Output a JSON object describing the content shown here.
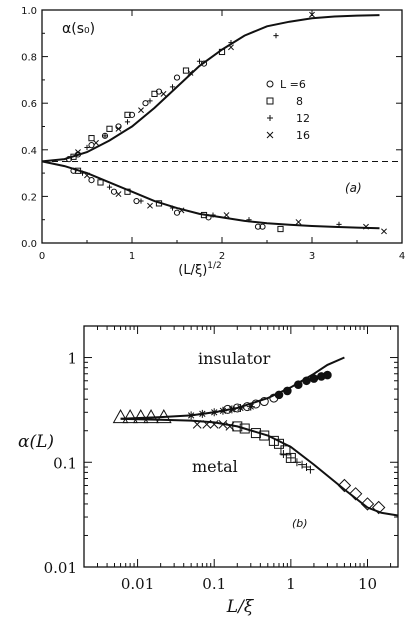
{
  "chart_data": [
    {
      "panel_label": "(a)",
      "type": "scatter",
      "ylabel": "α(s₀)",
      "xlabel": "(L/ξ)",
      "xlabel_exp": "1/2",
      "xlim": [
        0,
        4
      ],
      "ylim": [
        0,
        1
      ],
      "x_ticks": [
        "0",
        "1",
        "2",
        "3",
        "4"
      ],
      "y_ticks": [
        "0.0",
        "0.2",
        "0.4",
        "0.6",
        "0.8",
        "1.0"
      ],
      "legend_prefix": "L =",
      "legend": [
        {
          "label": "6",
          "marker": "circle"
        },
        {
          "label": "8",
          "marker": "square"
        },
        {
          "label": "12",
          "marker": "plus"
        },
        {
          "label": "16",
          "marker": "cross"
        }
      ],
      "dashed_level": 0.35,
      "curves": [
        {
          "x": [
            0,
            0.25,
            0.5,
            0.75,
            1.0,
            1.25,
            1.5,
            1.75,
            2.0,
            2.25,
            2.5,
            2.75,
            3.0,
            3.25,
            3.5,
            3.75
          ],
          "y": [
            0.35,
            0.36,
            0.39,
            0.44,
            0.5,
            0.58,
            0.67,
            0.76,
            0.83,
            0.89,
            0.93,
            0.95,
            0.965,
            0.972,
            0.976,
            0.978
          ]
        },
        {
          "x": [
            0,
            0.25,
            0.5,
            0.75,
            1.0,
            1.25,
            1.5,
            1.75,
            2.0,
            2.25,
            2.5,
            2.75,
            3.0,
            3.25,
            3.5,
            3.75
          ],
          "y": [
            0.35,
            0.33,
            0.3,
            0.26,
            0.22,
            0.18,
            0.15,
            0.125,
            0.11,
            0.095,
            0.085,
            0.078,
            0.073,
            0.069,
            0.066,
            0.063
          ]
        }
      ],
      "series": [
        {
          "name": "6",
          "marker": "circle",
          "x": [
            0.3,
            0.4,
            0.55,
            0.7,
            0.85,
            1.0,
            1.15,
            1.3,
            1.5,
            1.8,
            2.4,
            0.35,
            0.55,
            0.8,
            1.05,
            1.5,
            1.85,
            2.45
          ],
          "y": [
            0.36,
            0.38,
            0.42,
            0.46,
            0.5,
            0.55,
            0.6,
            0.65,
            0.71,
            0.77,
            0.07,
            0.31,
            0.27,
            0.22,
            0.18,
            0.13,
            0.11,
            0.07
          ]
        },
        {
          "name": "8",
          "marker": "square",
          "x": [
            0.35,
            0.55,
            0.75,
            0.95,
            1.25,
            1.6,
            2.0,
            0.4,
            0.65,
            0.95,
            1.3,
            1.8,
            2.65
          ],
          "y": [
            0.37,
            0.45,
            0.49,
            0.55,
            0.64,
            0.74,
            0.82,
            0.31,
            0.26,
            0.22,
            0.17,
            0.12,
            0.06
          ]
        },
        {
          "name": "12",
          "marker": "plus",
          "x": [
            0.5,
            0.7,
            0.95,
            1.2,
            1.45,
            1.75,
            2.1,
            2.6,
            0.45,
            0.75,
            1.1,
            1.45,
            1.9,
            2.3,
            3.3
          ],
          "y": [
            0.41,
            0.46,
            0.52,
            0.61,
            0.67,
            0.78,
            0.86,
            0.89,
            0.3,
            0.24,
            0.18,
            0.15,
            0.12,
            0.1,
            0.08
          ]
        },
        {
          "name": "16",
          "marker": "cross",
          "x": [
            0.4,
            0.6,
            0.85,
            1.1,
            1.35,
            1.65,
            2.1,
            3.0,
            0.5,
            0.85,
            1.2,
            1.55,
            2.05,
            2.85,
            3.6,
            3.8
          ],
          "y": [
            0.39,
            0.43,
            0.49,
            0.57,
            0.64,
            0.73,
            0.84,
            0.98,
            0.29,
            0.21,
            0.16,
            0.14,
            0.12,
            0.09,
            0.07,
            0.05
          ]
        }
      ]
    },
    {
      "panel_label": "(b)",
      "type": "scatter",
      "ylabel": "α(L)",
      "xlabel": "L/ξ",
      "x_scale": "log",
      "y_scale": "log",
      "xlim": [
        0.002,
        25
      ],
      "ylim": [
        0.01,
        2
      ],
      "x_ticks": [
        "0.01",
        "0.1",
        "1",
        "10"
      ],
      "y_ticks": [
        "1",
        "0.1",
        "0.01"
      ],
      "region_labels": {
        "upper": "insulator",
        "lower": "metal"
      },
      "curves": [
        {
          "x": [
            0.006,
            0.02,
            0.05,
            0.1,
            0.2,
            0.5,
            1,
            2,
            3,
            5
          ],
          "y": [
            0.26,
            0.27,
            0.28,
            0.3,
            0.33,
            0.41,
            0.52,
            0.7,
            0.85,
            1.0
          ]
        },
        {
          "x": [
            0.006,
            0.02,
            0.05,
            0.1,
            0.2,
            0.5,
            1,
            2,
            5,
            10,
            15,
            25
          ],
          "y": [
            0.26,
            0.255,
            0.25,
            0.24,
            0.22,
            0.18,
            0.14,
            0.095,
            0.055,
            0.037,
            0.033,
            0.031
          ]
        }
      ],
      "series": [
        {
          "name": "triangles",
          "marker": "triangle",
          "x": [
            0.006,
            0.008,
            0.011,
            0.015,
            0.022
          ],
          "y": [
            0.27,
            0.27,
            0.27,
            0.27,
            0.27
          ]
        },
        {
          "name": "stars",
          "marker": "star",
          "x": [
            0.05,
            0.07,
            0.1,
            0.13,
            0.17,
            0.22,
            0.3
          ],
          "y": [
            0.28,
            0.29,
            0.3,
            0.31,
            0.32,
            0.33,
            0.34
          ]
        },
        {
          "name": "open circles",
          "marker": "circle",
          "x": [
            0.15,
            0.2,
            0.27,
            0.35,
            0.45,
            0.6
          ],
          "y": [
            0.32,
            0.33,
            0.34,
            0.36,
            0.38,
            0.41
          ]
        },
        {
          "name": "filled circles",
          "marker": "filled-circle",
          "x": [
            0.7,
            0.9,
            1.25,
            1.6,
            2.0,
            2.5,
            3.0
          ],
          "y": [
            0.44,
            0.48,
            0.55,
            0.6,
            0.63,
            0.66,
            0.68
          ]
        },
        {
          "name": "crosses",
          "marker": "cross",
          "x": [
            0.06,
            0.08,
            0.1,
            0.13,
            0.16
          ],
          "y": [
            0.23,
            0.23,
            0.23,
            0.23,
            0.22
          ]
        },
        {
          "name": "open squares",
          "marker": "square",
          "x": [
            0.2,
            0.25,
            0.35,
            0.45,
            0.6,
            0.7,
            0.85,
            1.0
          ],
          "y": [
            0.22,
            0.21,
            0.19,
            0.18,
            0.16,
            0.15,
            0.13,
            0.11
          ]
        },
        {
          "name": "plus marks",
          "marker": "plus",
          "x": [
            0.8,
            1.0,
            1.2,
            1.4,
            1.6,
            1.8
          ],
          "y": [
            0.12,
            0.11,
            0.1,
            0.095,
            0.09,
            0.085
          ]
        },
        {
          "name": "diamonds",
          "marker": "diamond",
          "x": [
            5,
            7,
            10,
            14
          ],
          "y": [
            0.06,
            0.05,
            0.04,
            0.037
          ]
        }
      ]
    }
  ]
}
